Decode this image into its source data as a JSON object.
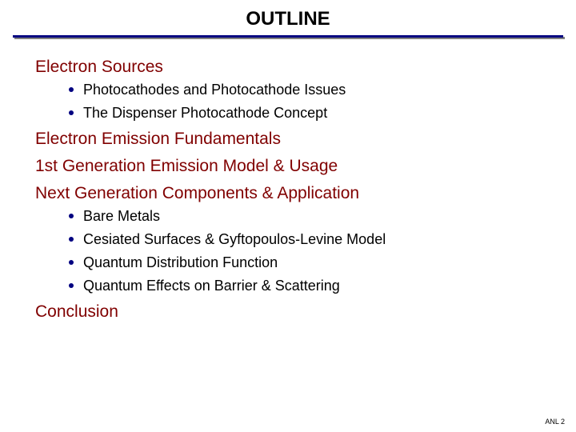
{
  "title": "OUTLINE",
  "title_fontsize": 24,
  "title_color": "#000000",
  "hr_color": "#000080",
  "section_color": "#800000",
  "section_fontsize": 21,
  "bullet_color": "#000080",
  "bullet_text_color": "#000000",
  "bullet_fontsize": 18,
  "sections": [
    {
      "label": "Electron Sources",
      "bullets": [
        "Photocathodes and Photocathode Issues",
        "The Dispenser Photocathode Concept"
      ]
    },
    {
      "label": "Electron Emission Fundamentals",
      "bullets": []
    },
    {
      "label": "1st Generation Emission Model & Usage",
      "bullets": []
    },
    {
      "label": "Next Generation Components & Application",
      "bullets": [
        "Bare Metals",
        "Cesiated Surfaces & Gyftopoulos-Levine Model",
        "Quantum Distribution Function",
        "Quantum Effects on Barrier & Scattering"
      ]
    },
    {
      "label": "Conclusion",
      "bullets": []
    }
  ],
  "footer": "ANL 2",
  "footer_fontsize": 9,
  "footer_color": "#000000",
  "background_color": "#ffffff"
}
